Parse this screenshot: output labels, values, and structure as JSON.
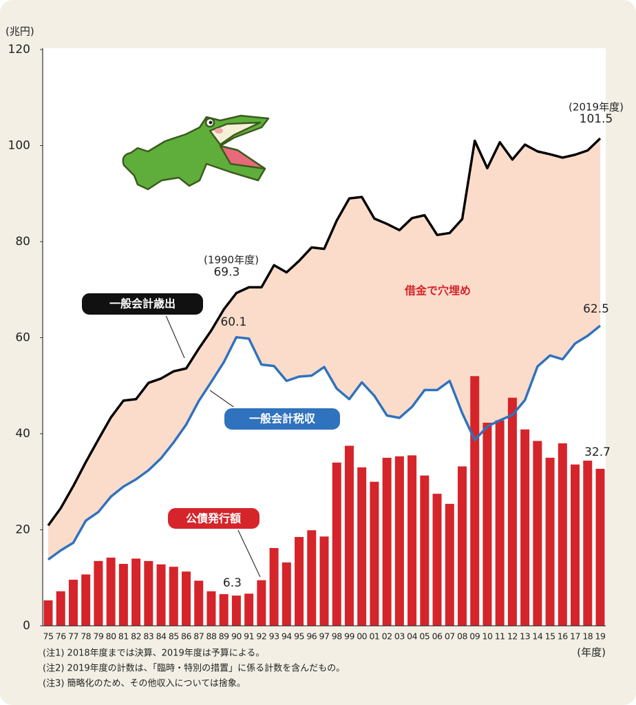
{
  "chart_data": {
    "type": "combo",
    "y_unit": "(兆円)",
    "x_unit": "(年度)",
    "categories": [
      "75",
      "76",
      "77",
      "78",
      "79",
      "80",
      "81",
      "82",
      "83",
      "84",
      "85",
      "86",
      "87",
      "88",
      "89",
      "90",
      "91",
      "92",
      "93",
      "94",
      "95",
      "96",
      "97",
      "98",
      "99",
      "00",
      "01",
      "02",
      "03",
      "04",
      "05",
      "06",
      "07",
      "08",
      "09",
      "10",
      "11",
      "12",
      "13",
      "14",
      "15",
      "16",
      "17",
      "18",
      "19"
    ],
    "series": [
      {
        "name": "一般会計歳出",
        "type": "line",
        "color": "#000000",
        "values": [
          20.9,
          24.5,
          29.1,
          34.1,
          38.8,
          43.4,
          46.9,
          47.2,
          50.6,
          51.5,
          53.0,
          53.6,
          57.7,
          61.5,
          65.9,
          69.3,
          70.5,
          70.5,
          75.1,
          73.6,
          76.0,
          78.8,
          78.5,
          84.4,
          89.0,
          89.3,
          84.8,
          83.7,
          82.4,
          84.9,
          85.5,
          81.4,
          81.8,
          84.7,
          101.0,
          95.3,
          100.7,
          97.1,
          100.2,
          98.8,
          98.2,
          97.5,
          98.1,
          99.0,
          101.5
        ]
      },
      {
        "name": "一般会計税収",
        "type": "line",
        "color": "#2f72bd",
        "values": [
          13.8,
          15.7,
          17.3,
          21.9,
          23.7,
          26.9,
          29.0,
          30.5,
          32.4,
          34.9,
          38.2,
          41.9,
          46.8,
          50.8,
          54.9,
          60.1,
          59.8,
          54.4,
          54.1,
          51.0,
          51.9,
          52.1,
          53.9,
          49.4,
          47.2,
          50.7,
          47.9,
          43.8,
          43.3,
          45.6,
          49.1,
          49.1,
          51.0,
          44.3,
          38.7,
          41.5,
          42.8,
          43.9,
          47.0,
          54.0,
          56.3,
          55.5,
          58.8,
          60.4,
          62.5
        ]
      },
      {
        "name": "公債発行額",
        "type": "bar",
        "color": "#d5242a",
        "values": [
          5.3,
          7.2,
          9.6,
          10.7,
          13.5,
          14.2,
          12.9,
          14.0,
          13.5,
          12.8,
          12.3,
          11.3,
          9.4,
          7.2,
          6.6,
          6.3,
          6.7,
          9.5,
          16.2,
          13.2,
          18.5,
          19.9,
          18.6,
          34.0,
          37.5,
          33.0,
          30.0,
          35.0,
          35.3,
          35.5,
          31.3,
          27.5,
          25.4,
          33.2,
          52.0,
          42.3,
          42.8,
          47.5,
          40.9,
          38.5,
          35.0,
          38.0,
          33.6,
          34.4,
          32.7
        ]
      }
    ],
    "area_color": "#fbdccb",
    "gap_label": "借金で穴埋め",
    "annotations": [
      "(1990年度)",
      "(2019年度)"
    ],
    "ylim": [
      0,
      120
    ],
    "yticks": [
      0,
      20,
      40,
      60,
      80,
      100,
      120
    ],
    "grid": false,
    "notes": [
      "(注1) 2018年度までは決算、2019年度は予算による。",
      "(注2) 2019年度の計数は、「臨時・特別の措置」に係る計数を含んだもの。",
      "(注3) 簡略化のため、その他収入については捨象。"
    ]
  }
}
